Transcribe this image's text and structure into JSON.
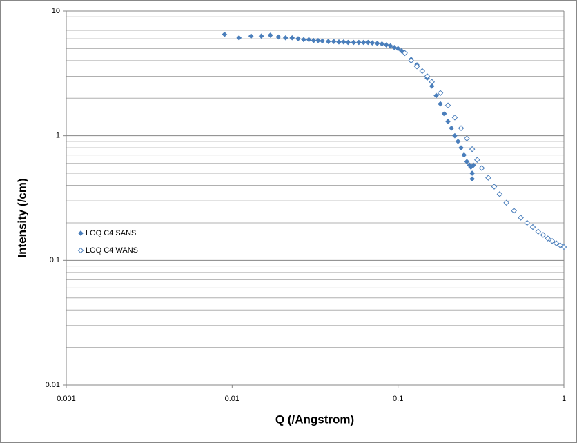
{
  "chart_data": {
    "type": "scatter",
    "x_label": "Q  (/Angstrom)",
    "y_label": "Intensity  (/cm)",
    "log_x": true,
    "log_y": true,
    "grid": true,
    "legend": "left",
    "xlim": [
      0.001,
      1
    ],
    "ylim": [
      0.01,
      10
    ],
    "xticks": [
      0.001,
      0.01,
      0.1,
      1
    ],
    "yticks": [
      0.01,
      0.1,
      1,
      10
    ],
    "yminorticks": [
      0.02,
      0.03,
      0.04,
      0.05,
      0.06,
      0.07,
      0.08,
      0.09,
      0.2,
      0.3,
      0.4,
      0.5,
      0.6,
      0.7,
      0.8,
      0.9,
      2,
      3,
      4,
      5,
      6,
      7,
      8,
      9
    ],
    "series": [
      {
        "name": "LOQ C4 SANS",
        "color": "#4a7ebb",
        "marker": "filled-diamond",
        "x": [
          0.009,
          0.011,
          0.013,
          0.015,
          0.017,
          0.019,
          0.021,
          0.023,
          0.025,
          0.027,
          0.029,
          0.031,
          0.033,
          0.035,
          0.038,
          0.041,
          0.044,
          0.047,
          0.05,
          0.054,
          0.058,
          0.062,
          0.066,
          0.07,
          0.075,
          0.08,
          0.085,
          0.09,
          0.095,
          0.1,
          0.105,
          0.11,
          0.12,
          0.13,
          0.14,
          0.15,
          0.16,
          0.17,
          0.18,
          0.19,
          0.2,
          0.21,
          0.22,
          0.23,
          0.24,
          0.25,
          0.26,
          0.27,
          0.275,
          0.28,
          0.28,
          0.285
        ],
        "values": [
          6.5,
          6.1,
          6.3,
          6.3,
          6.4,
          6.2,
          6.1,
          6.1,
          6.0,
          5.9,
          5.9,
          5.8,
          5.8,
          5.75,
          5.7,
          5.7,
          5.65,
          5.65,
          5.6,
          5.6,
          5.6,
          5.6,
          5.6,
          5.55,
          5.5,
          5.45,
          5.35,
          5.25,
          5.1,
          5.0,
          4.8,
          4.6,
          4.1,
          3.7,
          3.3,
          2.9,
          2.5,
          2.1,
          1.8,
          1.5,
          1.3,
          1.15,
          1.0,
          0.9,
          0.8,
          0.7,
          0.62,
          0.58,
          0.56,
          0.45,
          0.5,
          0.58
        ]
      },
      {
        "name": "LOQ C4 WANS",
        "color": "#4a7ebb",
        "marker": "open-diamond",
        "x": [
          0.11,
          0.12,
          0.13,
          0.14,
          0.15,
          0.16,
          0.18,
          0.2,
          0.22,
          0.24,
          0.26,
          0.28,
          0.3,
          0.32,
          0.35,
          0.38,
          0.41,
          0.45,
          0.5,
          0.55,
          0.6,
          0.65,
          0.7,
          0.75,
          0.8,
          0.85,
          0.9,
          0.95,
          1.0
        ],
        "values": [
          4.6,
          4.0,
          3.6,
          3.3,
          3.0,
          2.7,
          2.2,
          1.75,
          1.4,
          1.15,
          0.95,
          0.78,
          0.64,
          0.55,
          0.46,
          0.39,
          0.34,
          0.29,
          0.25,
          0.22,
          0.2,
          0.185,
          0.17,
          0.16,
          0.15,
          0.143,
          0.137,
          0.132,
          0.128
        ]
      }
    ]
  }
}
